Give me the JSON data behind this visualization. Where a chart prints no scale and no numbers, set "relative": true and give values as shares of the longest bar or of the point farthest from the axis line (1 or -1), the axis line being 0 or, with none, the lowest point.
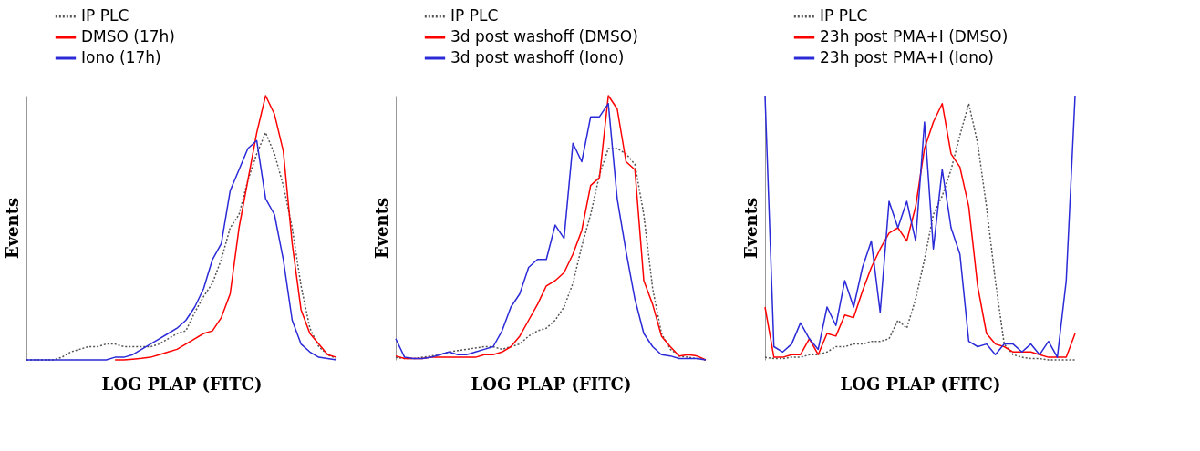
{
  "chart_data": [
    {
      "type": "line",
      "relative": true,
      "xlabel": "LOG PLAP (FITC)",
      "ylabel": "Events",
      "legend": "top left",
      "categories": [
        null,
        null,
        null,
        null,
        null,
        null,
        null,
        null,
        null,
        null,
        null,
        null,
        null,
        null,
        null,
        null,
        null,
        null,
        null,
        null,
        null,
        null,
        null,
        null,
        null,
        null,
        null,
        null,
        null,
        null,
        null,
        null,
        null,
        null,
        null,
        null
      ],
      "series": [
        {
          "name": "IP PLC",
          "color": "#555555",
          "line_style": "dotted",
          "values": [
            0,
            0,
            0,
            0,
            0.01,
            0.03,
            0.04,
            0.05,
            0.05,
            0.06,
            0.06,
            0.05,
            0.05,
            0.05,
            0.05,
            0.06,
            0.08,
            0.1,
            0.11,
            0.18,
            0.24,
            0.29,
            0.38,
            0.5,
            0.55,
            0.68,
            0.78,
            0.86,
            0.78,
            0.66,
            0.5,
            0.28,
            0.12,
            0.05,
            0.02,
            0.005
          ]
        },
        {
          "name": "DMSO (17h)",
          "color": "#ff0000",
          "line_style": "solid",
          "values": [
            null,
            null,
            null,
            null,
            null,
            null,
            null,
            null,
            null,
            null,
            0,
            0,
            0.003,
            0.006,
            0.01,
            0.02,
            0.03,
            0.04,
            0.06,
            0.08,
            0.1,
            0.11,
            0.16,
            0.25,
            0.5,
            0.68,
            0.86,
            1,
            0.93,
            0.79,
            0.44,
            0.19,
            0.1,
            0.06,
            0.02,
            0.01
          ]
        },
        {
          "name": "Iono (17h)",
          "color": "#2a2ad8",
          "line_style": "solid",
          "values": [
            0,
            0,
            0,
            0,
            0,
            0,
            0,
            0,
            0,
            0,
            0.01,
            0.01,
            0.02,
            0.04,
            0.06,
            0.08,
            0.1,
            0.12,
            0.15,
            0.2,
            0.27,
            0.38,
            0.44,
            0.64,
            0.72,
            0.8,
            0.83,
            0.61,
            0.55,
            0.38,
            0.15,
            0.06,
            0.03,
            0.01,
            0.005,
            0
          ]
        }
      ]
    },
    {
      "type": "line",
      "relative": true,
      "xlabel": "LOG PLAP (FITC)",
      "ylabel": "Events",
      "legend": "top left",
      "categories": [
        null,
        null,
        null,
        null,
        null,
        null,
        null,
        null,
        null,
        null,
        null,
        null,
        null,
        null,
        null,
        null,
        null,
        null,
        null,
        null,
        null,
        null,
        null,
        null,
        null,
        null,
        null,
        null,
        null,
        null,
        null,
        null,
        null,
        null,
        null,
        null
      ],
      "series": [
        {
          "name": "IP PLC",
          "color": "#555555",
          "line_style": "dotted",
          "values": [
            0.01,
            0.005,
            0.005,
            0.01,
            0.015,
            0.02,
            0.03,
            0.035,
            0.04,
            0.045,
            0.05,
            0.05,
            0.04,
            0.05,
            0.06,
            0.09,
            0.11,
            0.12,
            0.15,
            0.2,
            0.29,
            0.43,
            0.55,
            0.7,
            0.8,
            0.8,
            0.78,
            0.74,
            0.55,
            0.27,
            0.1,
            0.04,
            0.015,
            0.01,
            0.005,
            0
          ]
        },
        {
          "name": "3d  post washoff (DMSO)",
          "color": "#ff0000",
          "line_style": "solid",
          "values": [
            0.015,
            0.005,
            0.005,
            0.005,
            0.01,
            0.01,
            0.01,
            0.01,
            0.01,
            0.01,
            0.02,
            0.02,
            0.03,
            0.05,
            0.09,
            0.15,
            0.21,
            0.28,
            0.3,
            0.33,
            0.4,
            0.49,
            0.66,
            0.69,
            1,
            0.95,
            0.75,
            0.72,
            0.3,
            0.21,
            0.09,
            0.05,
            0.015,
            0.02,
            0.015,
            0
          ]
        },
        {
          "name": "3d post washoff (Iono)",
          "color": "#2a2ad8",
          "line_style": "solid",
          "values": [
            0.08,
            0.01,
            0.005,
            0.005,
            0.01,
            0.02,
            0.03,
            0.02,
            0.02,
            0.03,
            0.04,
            0.05,
            0.11,
            0.2,
            0.25,
            0.35,
            0.38,
            0.38,
            0.51,
            0.46,
            0.82,
            0.75,
            0.92,
            0.92,
            0.97,
            0.61,
            0.41,
            0.23,
            0.1,
            0.05,
            0.02,
            0.015,
            0.005,
            0.005,
            0.005,
            0
          ]
        }
      ]
    },
    {
      "type": "line",
      "relative": true,
      "xlabel": "LOG PLAP (FITC)",
      "ylabel": "Events",
      "legend": "top left",
      "categories": [
        null,
        null,
        null,
        null,
        null,
        null,
        null,
        null,
        null,
        null,
        null,
        null,
        null,
        null,
        null,
        null,
        null,
        null,
        null,
        null,
        null,
        null,
        null,
        null,
        null,
        null,
        null,
        null,
        null,
        null,
        null,
        null,
        null,
        null,
        null,
        null
      ],
      "series": [
        {
          "name": "IP PLC",
          "color": "#555555",
          "line_style": "dotted",
          "values": [
            0.01,
            0.005,
            0.005,
            0.01,
            0.01,
            0.02,
            0.02,
            0.03,
            0.05,
            0.05,
            0.06,
            0.06,
            0.07,
            0.07,
            0.08,
            0.15,
            0.12,
            0.23,
            0.38,
            0.55,
            0.62,
            0.72,
            0.85,
            0.97,
            0.82,
            0.58,
            0.3,
            0.06,
            0.02,
            0.01,
            0.005,
            0.005,
            0,
            0,
            0,
            0
          ]
        },
        {
          "name": "23h  post PMA+I (DMSO)",
          "color": "#ff0000",
          "line_style": "solid",
          "values": [
            0.2,
            0.01,
            0.01,
            0.02,
            0.02,
            0.08,
            0.02,
            0.1,
            0.09,
            0.17,
            0.16,
            0.26,
            0.35,
            0.42,
            0.48,
            0.5,
            0.45,
            0.58,
            0.8,
            0.9,
            0.97,
            0.78,
            0.73,
            0.58,
            0.28,
            0.1,
            0.06,
            0.05,
            0.03,
            0.03,
            0.03,
            0.02,
            0.01,
            0.01,
            0.01,
            0.1
          ]
        },
        {
          "name": "23h post PMA+I (Iono)",
          "color": "#2a2ad8",
          "line_style": "solid",
          "values": [
            1,
            0.05,
            0.03,
            0.06,
            0.14,
            0.08,
            0.04,
            0.2,
            0.13,
            0.3,
            0.2,
            0.35,
            0.45,
            0.18,
            0.6,
            0.5,
            0.6,
            0.45,
            0.9,
            0.42,
            0.72,
            0.5,
            0.4,
            0.07,
            0.05,
            0.06,
            0.02,
            0.06,
            0.06,
            0.03,
            0.06,
            0.02,
            0.07,
            0.01,
            0.3,
            1
          ]
        }
      ]
    }
  ]
}
